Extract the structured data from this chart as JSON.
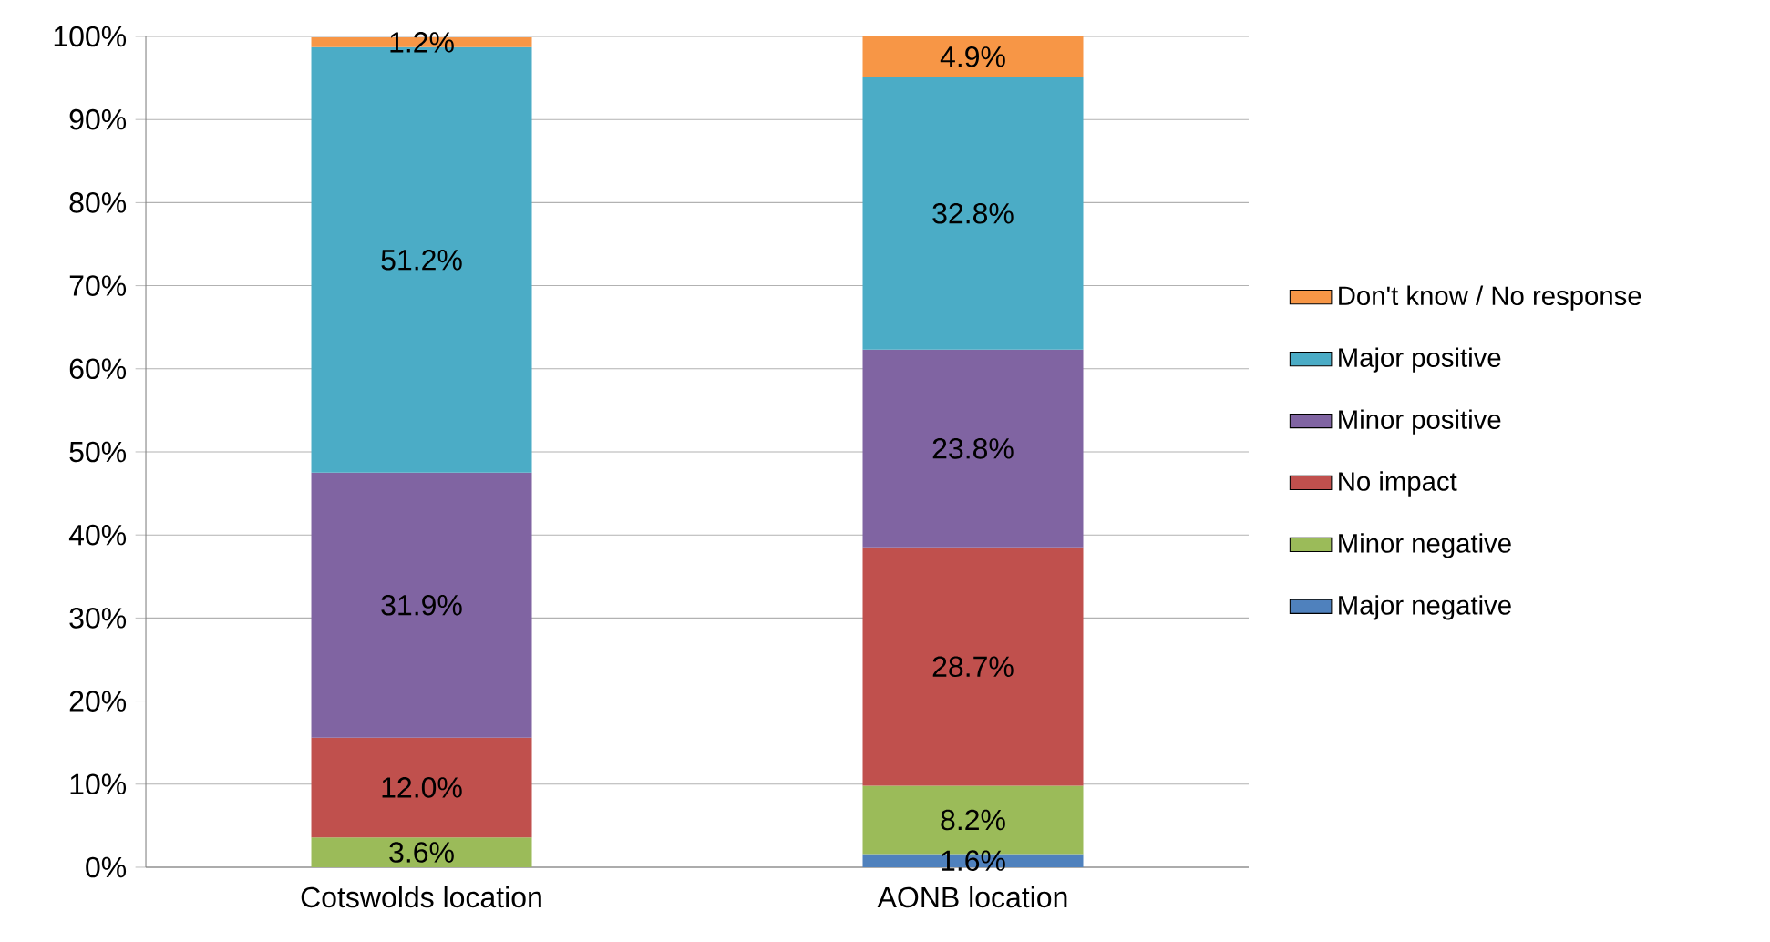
{
  "chart_data": {
    "type": "bar",
    "stacked": true,
    "categories": [
      "Cotswolds location",
      "AONB location"
    ],
    "series": [
      {
        "name": "Major negative",
        "color": "#4f81bd",
        "values": [
          null,
          1.6
        ],
        "value_labels": [
          null,
          "1.6%"
        ]
      },
      {
        "name": "Minor negative",
        "color": "#9bbb59",
        "values": [
          3.6,
          8.2
        ],
        "value_labels": [
          "3.6%",
          "8.2%"
        ]
      },
      {
        "name": "No impact",
        "color": "#c0504d",
        "values": [
          12.0,
          28.7
        ],
        "value_labels": [
          "12.0%",
          "28.7%"
        ]
      },
      {
        "name": "Minor positive",
        "color": "#8064a2",
        "values": [
          31.9,
          23.8
        ],
        "value_labels": [
          "31.9%",
          "23.8%"
        ]
      },
      {
        "name": "Major positive",
        "color": "#4bacc6",
        "values": [
          51.2,
          32.8
        ],
        "value_labels": [
          "51.2%",
          "32.8%"
        ]
      },
      {
        "name": "Don't know / No response",
        "color": "#f79646",
        "values": [
          1.2,
          4.9
        ],
        "value_labels": [
          "1.2%",
          "4.9%"
        ]
      }
    ],
    "ylim": [
      0,
      100
    ],
    "yticks": [
      {
        "value": 0,
        "label": "0%"
      },
      {
        "value": 10,
        "label": "10%"
      },
      {
        "value": 20,
        "label": "20%"
      },
      {
        "value": 30,
        "label": "30%"
      },
      {
        "value": 40,
        "label": "40%"
      },
      {
        "value": 50,
        "label": "50%"
      },
      {
        "value": 60,
        "label": "60%"
      },
      {
        "value": 70,
        "label": "70%"
      },
      {
        "value": 80,
        "label": "80%"
      },
      {
        "value": 90,
        "label": "90%"
      },
      {
        "value": 100,
        "label": "100%"
      }
    ],
    "grid": "y",
    "legend": "right"
  }
}
